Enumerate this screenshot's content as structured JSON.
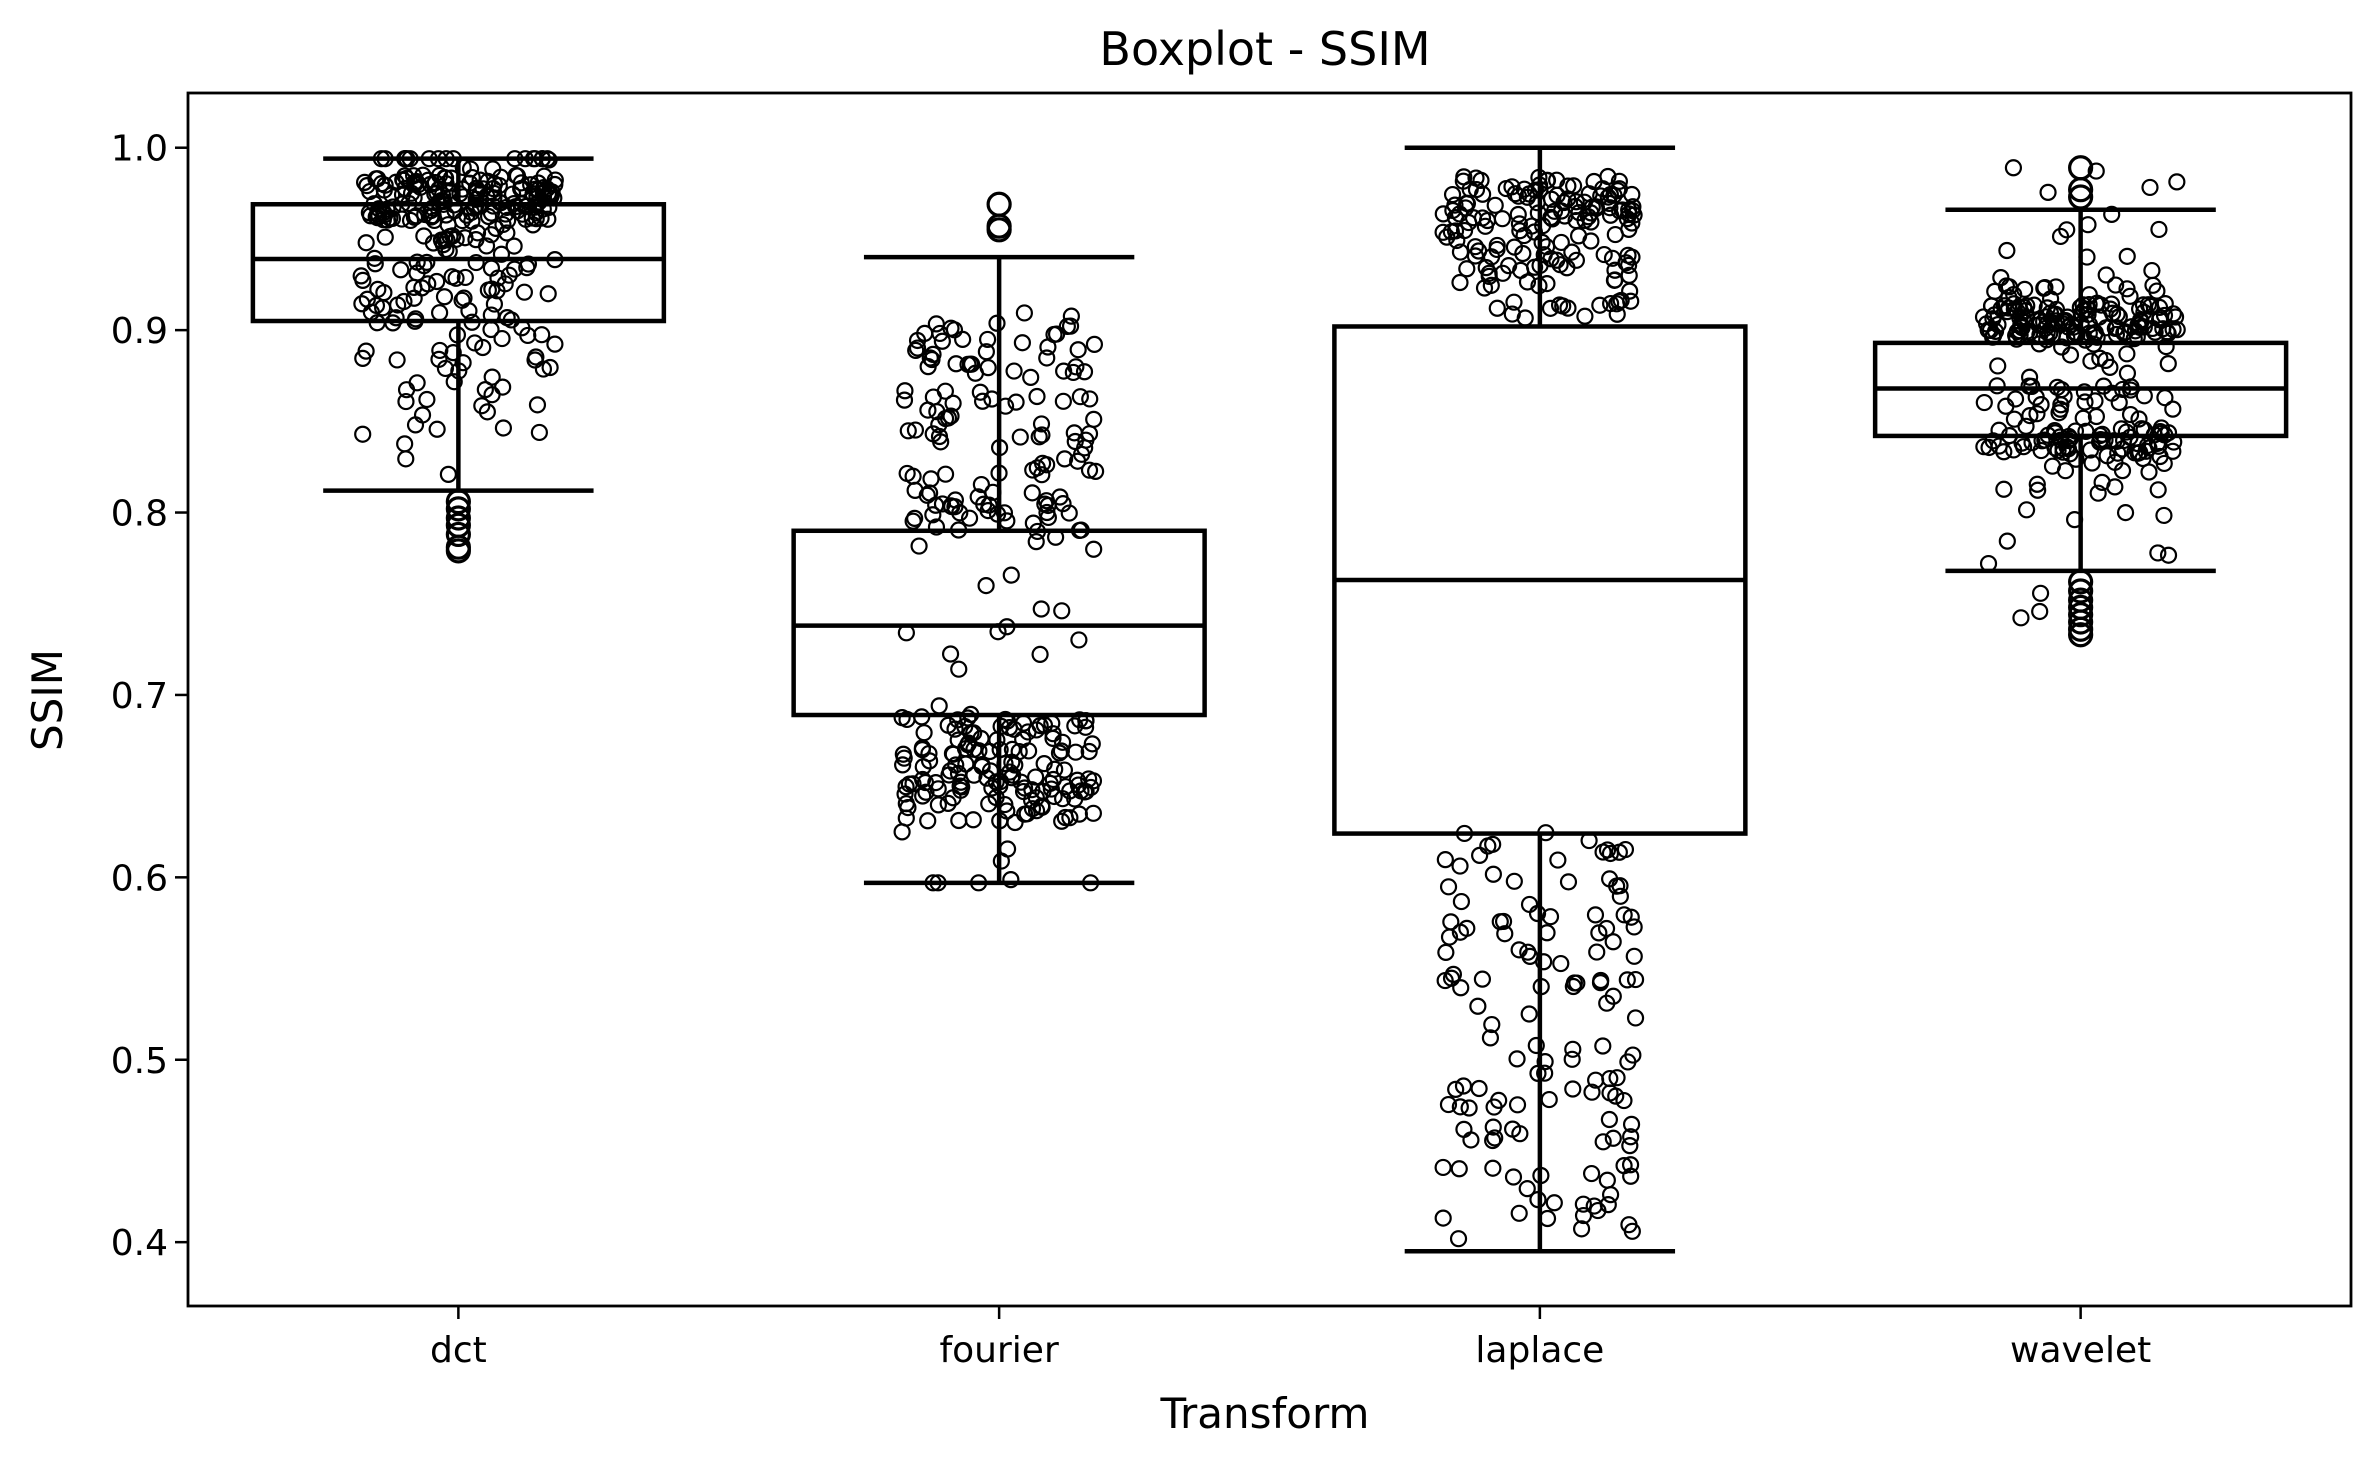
{
  "chart_data": {
    "type": "boxplot",
    "title": "Boxplot - SSIM",
    "xlabel": "Transform",
    "ylabel": "SSIM",
    "ylim": [
      0.365,
      1.03
    ],
    "yticks": [
      0.4,
      0.5,
      0.6,
      0.7,
      0.8,
      0.9,
      1.0
    ],
    "ytick_labels": [
      "0.4",
      "0.5",
      "0.6",
      "0.7",
      "0.8",
      "0.9",
      "1.0"
    ],
    "categories": [
      "dct",
      "fourier",
      "laplace",
      "wavelet"
    ],
    "boxes": [
      {
        "category": "dct",
        "whisker_low": 0.812,
        "q1": 0.905,
        "median": 0.939,
        "q3": 0.969,
        "whisker_high": 0.994,
        "outliers": [
          0.806,
          0.802,
          0.797,
          0.793,
          0.788,
          0.781,
          0.779
        ],
        "high_outliers": []
      },
      {
        "category": "fourier",
        "whisker_low": 0.597,
        "q1": 0.689,
        "median": 0.738,
        "q3": 0.79,
        "whisker_high": 0.94,
        "outliers": [],
        "high_outliers": [
          0.969,
          0.957,
          0.955
        ]
      },
      {
        "category": "laplace",
        "whisker_low": 0.395,
        "q1": 0.624,
        "median": 0.763,
        "q3": 0.902,
        "whisker_high": 1.0,
        "outliers": [],
        "high_outliers": []
      },
      {
        "category": "wavelet",
        "whisker_low": 0.768,
        "q1": 0.842,
        "median": 0.868,
        "q3": 0.893,
        "whisker_high": 0.966,
        "outliers": [
          0.762,
          0.757,
          0.752,
          0.748,
          0.744,
          0.74,
          0.736,
          0.733
        ],
        "high_outliers": [
          0.989,
          0.977,
          0.973
        ]
      }
    ],
    "strip_points": {
      "dct": {
        "count": 300,
        "range": [
          0.779,
          0.994
        ],
        "concentration": [
          0.96,
          0.985
        ]
      },
      "fourier": {
        "count": 300,
        "range": [
          0.597,
          0.969
        ]
      },
      "laplace": {
        "count": 300,
        "range": [
          0.395,
          1.0
        ]
      },
      "wavelet": {
        "count": 300,
        "range": [
          0.733,
          0.989
        ]
      }
    },
    "grid": false,
    "legend": "none"
  }
}
